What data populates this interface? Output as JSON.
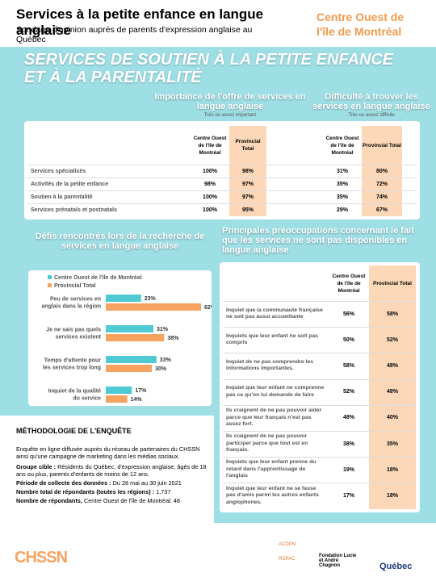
{
  "header": {
    "title": "Services à la petite enfance en langue anglaise",
    "subtitle": "Sondage d'opinion auprès de parents d'expression anglaise au Québec",
    "region": "Centre Ouest de l'île de Montréal"
  },
  "banner": "SERVICES DE SOUTIEN À LA PETITE ENFANCE ET À LA PARENTALITÉ",
  "table1": {
    "groups": [
      {
        "title": "Importance de l'offre de services en langue anglaise",
        "note": "Très ou assez important"
      },
      {
        "title": "Difficulté à trouver les services en langue anglaise",
        "note": "Très ou assez difficile"
      }
    ],
    "columns": [
      "Centre Ouest de l'île de Montréal",
      "Provincial Total",
      "Centre Ouest de l'île de Montréal",
      "Provincial Total"
    ],
    "rows": [
      [
        "Services spécialisés",
        "100%",
        "98%",
        "31%",
        "80%"
      ],
      [
        "Activités de la petite enfance",
        "98%",
        "97%",
        "35%",
        "72%"
      ],
      [
        "Soutien à la parentalité",
        "100%",
        "97%",
        "35%",
        "74%"
      ],
      [
        "Services prénatals et postnatals",
        "100%",
        "95%",
        "29%",
        "67%"
      ]
    ]
  },
  "chart_data": {
    "type": "bar",
    "orientation": "horizontal",
    "title": "Défis rencontrés lors de la recherche de services en langue anglaise",
    "categories": [
      "Peu de services en anglais dans la région",
      "Je ne sais pas quels services existent",
      "Temps d'attente pour les services trop long",
      "Inquiet de la qualité du service"
    ],
    "series": [
      {
        "name": "Centre Ouest de l'île de Montréal",
        "color": "#4fcad3",
        "values": [
          23,
          31,
          33,
          17
        ],
        "value_labels": [
          "23%",
          "31%",
          "33%",
          "17%"
        ]
      },
      {
        "name": "Provincial Total",
        "color": "#f6a35f",
        "values": [
          62,
          38,
          30,
          14
        ],
        "value_labels": [
          "62%",
          "38%",
          "30%",
          "14%"
        ]
      }
    ]
  },
  "table2": {
    "title": "Principales préoccupations concernant le fait que les services ne sont pas disponibles en langue anglaise",
    "columns": [
      "Centre Ouest de l'île de Montréal",
      "Provincial Total"
    ],
    "rows": [
      [
        "Inquiet que la communauté française ne soit pas aussi accueillante",
        "56%",
        "58%"
      ],
      [
        "Inquiets que leur enfant ne soit pas compris",
        "50%",
        "52%"
      ],
      [
        "Inquiet de ne pas comprendre les informations importantes.",
        "58%",
        "48%"
      ],
      [
        "Inquiet que leur enfant ne comprenne pas ce qu'on lui demande de faire",
        "52%",
        "48%"
      ],
      [
        "Ils craignent de ne pas pouvoir aider parce que leur français n'est pas assez fort.",
        "48%",
        "40%"
      ],
      [
        "Ils craignent de ne pas pouvoir participer parce que tout est en français.",
        "38%",
        "35%"
      ],
      [
        "Inquiets que leur enfant prenne du retard dans l'apprentissage de l'anglais",
        "19%",
        "18%"
      ],
      [
        "Inquiet que leur enfant ne se fasse pas d'amis parmi les autres enfants anglophones.",
        "17%",
        "18%"
      ]
    ]
  },
  "methodology": {
    "title": "MÉTHODOLOGIE DE L'ENQUÊTE",
    "intro": "Enquête en ligne diffusée auprès du réseau de partenaires du CHSSN ainsi qu'une campagne de marketing dans les médias sociaux.",
    "items": [
      {
        "label": "Groupe cible :",
        "text": "Résidents du Québec, d'expression anglaise, âgés de 18 ans ou plus, parents d'enfants de moins de 12 ans."
      },
      {
        "label": "Période de collecte des données :",
        "text": "Du 28 mai au 30 juin 2021"
      },
      {
        "label": "Nombre total de répondants (toutes les régions) :",
        "text": "1,737"
      },
      {
        "label": "Nombre de répondants,",
        "text": "Centre Ouest de l'île de Montréal: 48"
      }
    ]
  },
  "footer": {
    "logos": [
      "CHSSN",
      "ACDPN",
      "RDPAC",
      "Fondation Lucie et André Chagnon",
      "Québec"
    ]
  }
}
